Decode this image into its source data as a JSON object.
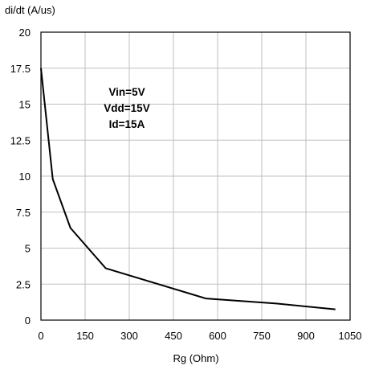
{
  "chart_data": {
    "type": "line",
    "title": "",
    "xlabel": "Rg (Ohm)",
    "ylabel": "di/dt (A/us)",
    "xlim": [
      0,
      1050
    ],
    "ylim": [
      0,
      20
    ],
    "x_ticks": [
      0,
      150,
      300,
      450,
      600,
      750,
      900,
      1050
    ],
    "x_tick_labels": [
      "0",
      "150",
      "300",
      "450",
      "600",
      "750",
      "900",
      "1050"
    ],
    "y_ticks": [
      0,
      2.5,
      5,
      7.5,
      10,
      12.5,
      15,
      17.5,
      20
    ],
    "y_tick_labels": [
      "0",
      "2.5",
      "5",
      "7.5",
      "10",
      "12.5",
      "15",
      "17.5",
      "20"
    ],
    "grid": true,
    "series": [
      {
        "x": [
          0,
          40,
          100,
          220,
          560,
          800,
          1000
        ],
        "y": [
          17.5,
          9.8,
          6.4,
          3.6,
          1.5,
          1.15,
          0.75
        ]
      }
    ],
    "annotations": [
      "Vin=5V",
      "Vdd=15V",
      "Id=15A"
    ],
    "colors": {
      "line": "#000000",
      "grid": "#bfbfbf",
      "frame": "#000000"
    }
  }
}
